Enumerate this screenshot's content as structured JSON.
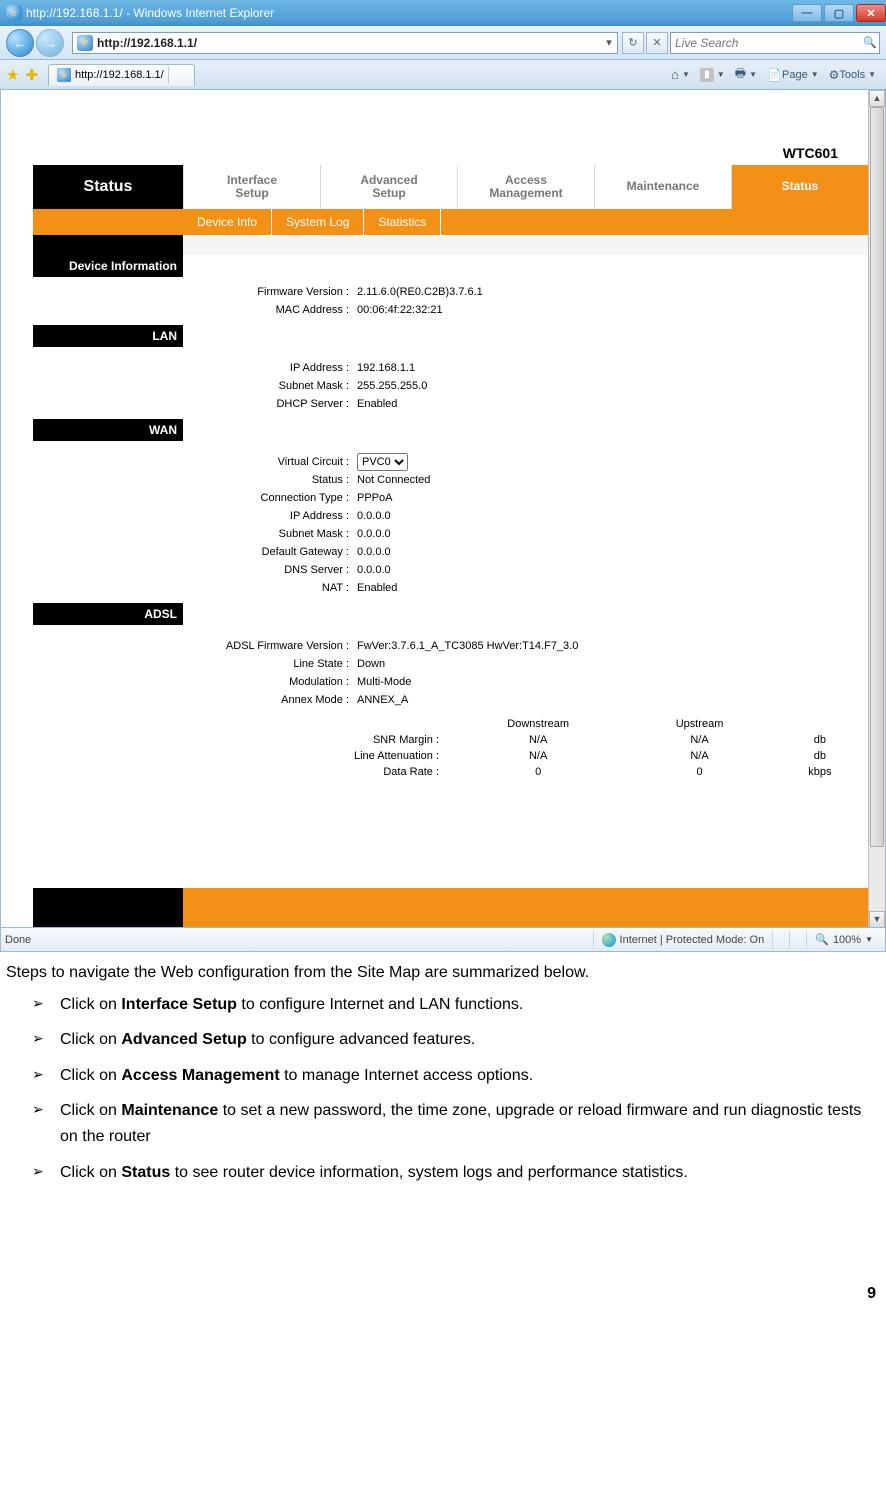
{
  "window": {
    "title": "http://192.168.1.1/ - Windows Internet Explorer",
    "url": "http://192.168.1.1/",
    "search_placeholder": "Live Search",
    "tab_label": "http://192.168.1.1/",
    "btn_page": "Page",
    "btn_tools": "Tools"
  },
  "status": {
    "done": "Done",
    "zone": "Internet | Protected Mode: On",
    "zoom": "100%"
  },
  "router": {
    "model": "WTC601",
    "side_label": "Status",
    "tabs": [
      "Interface\nSetup",
      "Advanced\nSetup",
      "Access\nManagement",
      "Maintenance",
      "Status"
    ],
    "subtabs": [
      "Device Info",
      "System Log",
      "Statistics"
    ],
    "sections": {
      "devinfo": {
        "title": "Device Information",
        "rows": [
          {
            "k": "Firmware Version :",
            "v": "2.11.6.0(RE0.C2B)3.7.6.1"
          },
          {
            "k": "MAC Address :",
            "v": "00:06:4f:22:32:21"
          }
        ]
      },
      "lan": {
        "title": "LAN",
        "rows": [
          {
            "k": "IP Address :",
            "v": "192.168.1.1"
          },
          {
            "k": "Subnet Mask :",
            "v": "255.255.255.0"
          },
          {
            "k": "DHCP Server :",
            "v": "Enabled"
          }
        ]
      },
      "wan": {
        "title": "WAN",
        "vc_label": "Virtual Circuit :",
        "vc_value": "PVC0",
        "rows": [
          {
            "k": "Status :",
            "v": "Not Connected"
          },
          {
            "k": "Connection Type :",
            "v": "PPPoA"
          },
          {
            "k": "IP Address :",
            "v": "0.0.0.0"
          },
          {
            "k": "Subnet Mask :",
            "v": "0.0.0.0"
          },
          {
            "k": "Default Gateway :",
            "v": "0.0.0.0"
          },
          {
            "k": "DNS Server :",
            "v": "0.0.0.0"
          },
          {
            "k": "NAT :",
            "v": "Enabled"
          }
        ]
      },
      "adsl": {
        "title": "ADSL",
        "rows": [
          {
            "k": "ADSL Firmware Version :",
            "v": "FwVer:3.7.6.1_A_TC3085 HwVer:T14.F7_3.0"
          },
          {
            "k": "Line State :",
            "v": "Down"
          },
          {
            "k": "Modulation :",
            "v": "Multi-Mode"
          },
          {
            "k": "Annex Mode :",
            "v": "ANNEX_A"
          }
        ],
        "stats": {
          "cols": [
            "",
            "Downstream",
            "Upstream",
            ""
          ],
          "rows": [
            [
              "SNR Margin :",
              "N/A",
              "N/A",
              "db"
            ],
            [
              "Line Attenuation :",
              "N/A",
              "N/A",
              "db"
            ],
            [
              "Data Rate :",
              "0",
              "0",
              "kbps"
            ]
          ]
        }
      }
    }
  },
  "doc": {
    "intro": "Steps to navigate the Web configuration from the Site Map are summarized below.",
    "items": [
      {
        "pre": "Click on ",
        "b": "Interface Setup",
        "post": " to configure Internet and LAN functions."
      },
      {
        "pre": "Click on ",
        "b": "Advanced Setup",
        "post": " to configure advanced features."
      },
      {
        "pre": "Click on ",
        "b": "Access Management",
        "post": " to manage Internet access options."
      },
      {
        "pre": "Click on ",
        "b": "Maintenance",
        "post": " to set a new password, the time zone, upgrade or reload firmware and run diagnostic tests on the router"
      },
      {
        "pre": "Click on ",
        "b": "Status",
        "post": " to see router device information, system logs and performance statistics."
      }
    ],
    "pagenum": "9"
  }
}
